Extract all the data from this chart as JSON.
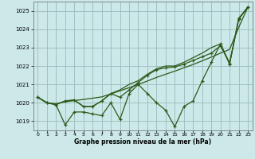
{
  "title": "Graphe pression niveau de la mer (hPa)",
  "bg_color": "#cce8e8",
  "grid_color": "#99bbbb",
  "line_color": "#2d5a1b",
  "xlim": [
    -0.5,
    23.5
  ],
  "ylim": [
    1018.5,
    1025.5
  ],
  "yticks": [
    1019,
    1020,
    1021,
    1022,
    1023,
    1024,
    1025
  ],
  "xticks": [
    0,
    1,
    2,
    3,
    4,
    5,
    6,
    7,
    8,
    9,
    10,
    11,
    12,
    13,
    14,
    15,
    16,
    17,
    18,
    19,
    20,
    21,
    22,
    23
  ],
  "s1": [
    1020.3,
    1020.0,
    1019.9,
    1018.8,
    1019.5,
    1019.5,
    1019.4,
    1019.3,
    1020.0,
    1019.1,
    1020.5,
    1021.0,
    1020.5,
    1020.0,
    1019.6,
    1018.7,
    1019.8,
    1020.1,
    1021.2,
    1022.2,
    1023.2,
    1022.1,
    1024.6,
    1025.2
  ],
  "s2": [
    1020.3,
    1020.0,
    1019.9,
    1020.1,
    1020.15,
    1019.8,
    1019.8,
    1020.1,
    1020.5,
    1020.3,
    1020.7,
    1021.1,
    1021.5,
    1021.8,
    1021.9,
    1021.95,
    1022.1,
    1022.3,
    1022.5,
    1022.7,
    1023.1,
    1022.15,
    1024.55,
    1025.2
  ],
  "s3": [
    1020.3,
    1020.0,
    1019.9,
    1020.1,
    1020.15,
    1019.8,
    1019.8,
    1020.1,
    1020.5,
    1020.7,
    1021.0,
    1021.2,
    1021.55,
    1021.85,
    1022.0,
    1022.0,
    1022.2,
    1022.45,
    1022.7,
    1023.0,
    1023.2,
    1022.15,
    1024.55,
    1025.2
  ],
  "s4": [
    1020.3,
    1020.0,
    1019.95,
    1020.05,
    1020.12,
    1020.18,
    1020.25,
    1020.32,
    1020.48,
    1020.65,
    1020.82,
    1021.0,
    1021.18,
    1021.38,
    1021.55,
    1021.72,
    1021.9,
    1022.08,
    1022.28,
    1022.48,
    1022.7,
    1022.9,
    1024.1,
    1025.2
  ]
}
